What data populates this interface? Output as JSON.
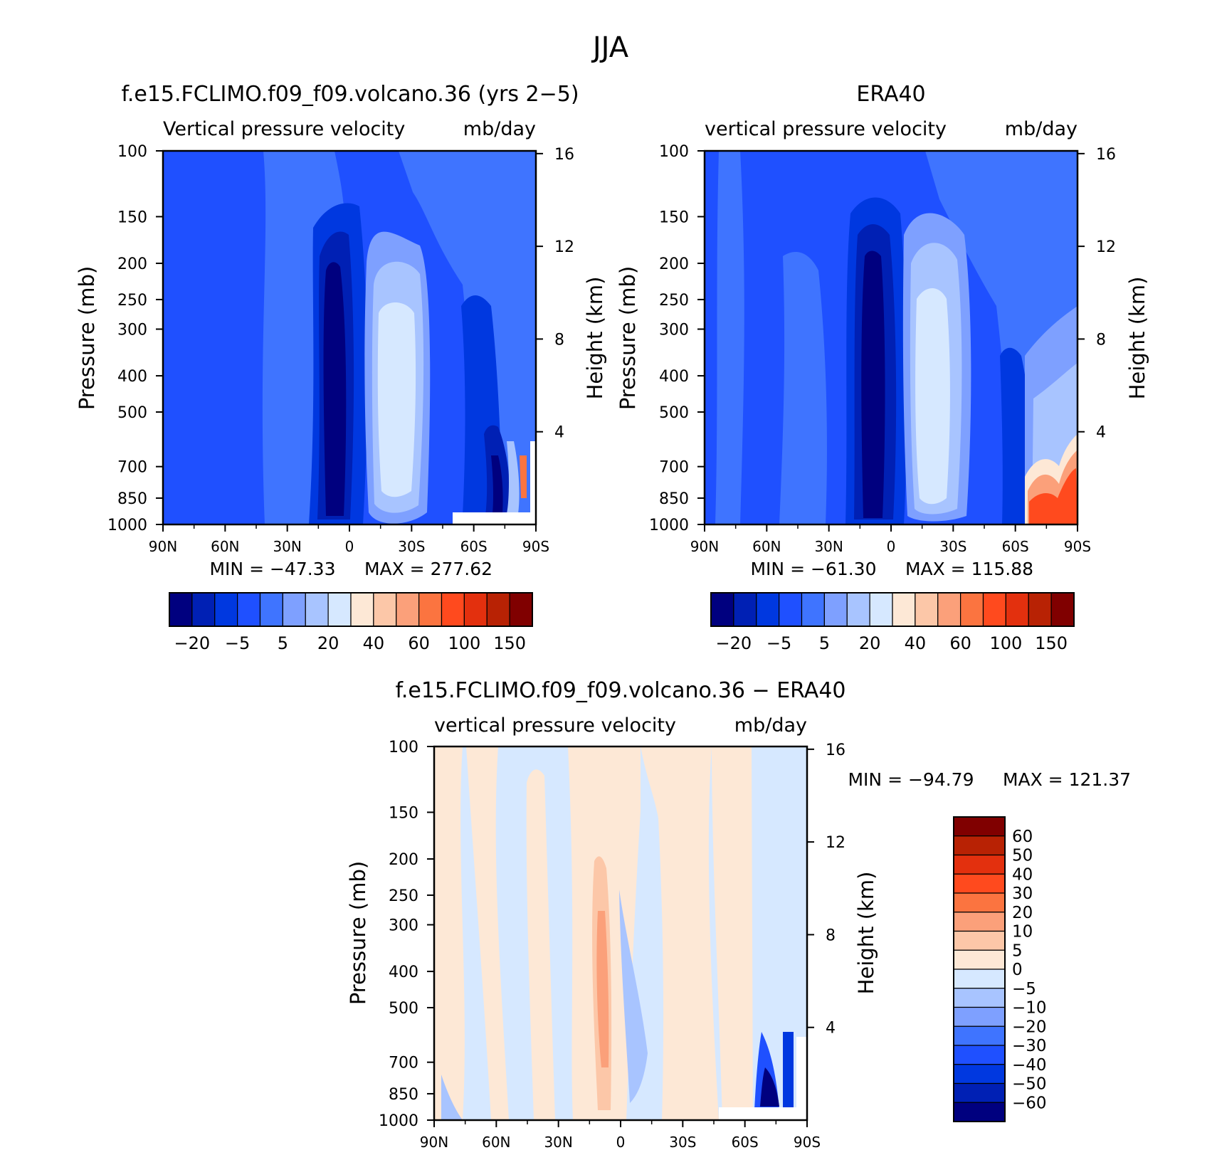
{
  "figure": {
    "title": "JJA"
  },
  "colors": {
    "blues": [
      "#00007f",
      "#0020b4",
      "#0038e0",
      "#1f50ff",
      "#3f74ff",
      "#7ea0ff",
      "#a8c4ff",
      "#d6e8ff"
    ],
    "reds": [
      "#fde8d6",
      "#fcc7a8",
      "#fba07a",
      "#fb7440",
      "#ff4a1e",
      "#e3300e",
      "#b82204",
      "#800000"
    ]
  },
  "chart_data": [
    {
      "type": "contour",
      "title": "f.e15.FCLIMO.f09_f09.volcano.36 (yrs 2−5)",
      "subtitle_left": "Vertical pressure velocity",
      "subtitle_right": "mb/day",
      "xlabel": "",
      "ylabel": "Pressure (mb)",
      "ylabel_right": "Height (km)",
      "x_ticks": [
        "90N",
        "60N",
        "30N",
        "0",
        "30S",
        "60S",
        "90S"
      ],
      "y_ticks": [
        "100",
        "150",
        "200",
        "250",
        "300",
        "400",
        "500",
        "700",
        "850",
        "1000"
      ],
      "y_right_ticks": [
        "16",
        "12",
        "8",
        "4"
      ],
      "ylim": [
        1000,
        100
      ],
      "min_label": "MIN = −47.33",
      "max_label": "MAX = 277.62",
      "colorbar_levels": [
        "−20",
        "−5",
        "5",
        "20",
        "40",
        "60",
        "100",
        "150"
      ]
    },
    {
      "type": "contour",
      "title": "ERA40",
      "subtitle_left": "vertical pressure velocity",
      "subtitle_right": "mb/day",
      "xlabel": "",
      "ylabel": "Pressure (mb)",
      "ylabel_right": "Height (km)",
      "x_ticks": [
        "90N",
        "60N",
        "30N",
        "0",
        "30S",
        "60S",
        "90S"
      ],
      "y_ticks": [
        "100",
        "150",
        "200",
        "250",
        "300",
        "400",
        "500",
        "700",
        "850",
        "1000"
      ],
      "y_right_ticks": [
        "16",
        "12",
        "8",
        "4"
      ],
      "ylim": [
        1000,
        100
      ],
      "min_label": "MIN = −61.30",
      "max_label": "MAX = 115.88",
      "colorbar_levels": [
        "−20",
        "−5",
        "5",
        "20",
        "40",
        "60",
        "100",
        "150"
      ]
    },
    {
      "type": "contour",
      "title": "f.e15.FCLIMO.f09_f09.volcano.36 − ERA40",
      "subtitle_left": "vertical pressure velocity",
      "subtitle_right": "mb/day",
      "xlabel": "",
      "ylabel": "Pressure (mb)",
      "ylabel_right": "Height (km)",
      "x_ticks": [
        "90N",
        "60N",
        "30N",
        "0",
        "30S",
        "60S",
        "90S"
      ],
      "y_ticks": [
        "100",
        "150",
        "200",
        "250",
        "300",
        "400",
        "500",
        "700",
        "850",
        "1000"
      ],
      "y_right_ticks": [
        "16",
        "12",
        "8",
        "4"
      ],
      "ylim": [
        1000,
        100
      ],
      "min_label": "MIN = −94.79",
      "max_label": "MAX = 121.37",
      "colorbar_levels": [
        "60",
        "50",
        "40",
        "30",
        "20",
        "10",
        "5",
        "0",
        "−5",
        "−10",
        "−20",
        "−30",
        "−40",
        "−50",
        "−60"
      ]
    }
  ]
}
